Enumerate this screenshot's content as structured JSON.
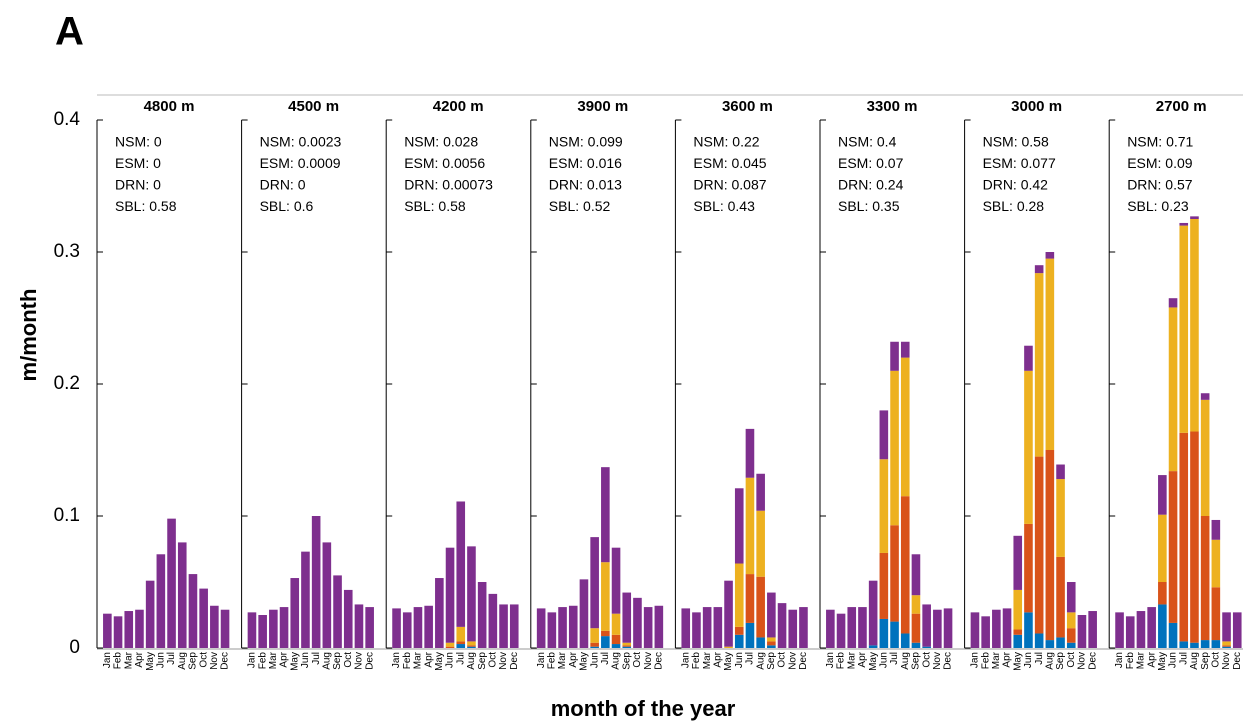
{
  "figure": {
    "panel_label": "A",
    "ylabel": "m/month",
    "xlabel": "month of the year"
  },
  "chart_data": [
    {
      "type": "bar",
      "stacked": true,
      "title": "4800 m",
      "annotations": [
        "NSM: 0",
        "ESM: 0",
        "DRN: 0",
        "SBL: 0.58"
      ],
      "categories": [
        "Jan",
        "Feb",
        "Mar",
        "Apr",
        "May",
        "Jun",
        "Jul",
        "Aug",
        "Sep",
        "Oct",
        "Nov",
        "Dec"
      ],
      "ylim": [
        0,
        0.4
      ],
      "yticks": [
        0,
        0.1,
        0.2,
        0.3,
        0.4
      ],
      "series": [
        {
          "color": "#0072bd",
          "values": [
            0,
            0,
            0,
            0,
            0,
            0,
            0,
            0,
            0,
            0,
            0,
            0
          ]
        },
        {
          "color": "#d95319",
          "values": [
            0,
            0,
            0,
            0,
            0,
            0,
            0,
            0,
            0,
            0,
            0,
            0
          ]
        },
        {
          "color": "#edb120",
          "values": [
            0,
            0,
            0,
            0,
            0,
            0,
            0,
            0,
            0,
            0,
            0,
            0
          ]
        },
        {
          "color": "#7e2f8e",
          "values": [
            0.026,
            0.024,
            0.028,
            0.029,
            0.051,
            0.071,
            0.098,
            0.08,
            0.056,
            0.045,
            0.032,
            0.029
          ]
        }
      ]
    },
    {
      "type": "bar",
      "stacked": true,
      "title": "4500 m",
      "annotations": [
        "NSM: 0.0023",
        "ESM: 0.0009",
        "DRN: 0",
        "SBL: 0.6"
      ],
      "categories": [
        "Jan",
        "Feb",
        "Mar",
        "Apr",
        "May",
        "Jun",
        "Jul",
        "Aug",
        "Sep",
        "Oct",
        "Nov",
        "Dec"
      ],
      "ylim": [
        0,
        0.4
      ],
      "yticks": [
        0,
        0.1,
        0.2,
        0.3,
        0.4
      ],
      "series": [
        {
          "color": "#0072bd",
          "values": [
            0,
            0,
            0,
            0,
            0,
            0,
            0,
            0,
            0,
            0,
            0,
            0
          ]
        },
        {
          "color": "#d95319",
          "values": [
            0,
            0,
            0,
            0,
            0,
            0,
            0,
            0,
            0,
            0,
            0,
            0
          ]
        },
        {
          "color": "#edb120",
          "values": [
            0,
            0,
            0,
            0,
            0,
            0,
            0,
            0,
            0,
            0,
            0,
            0
          ]
        },
        {
          "color": "#7e2f8e",
          "values": [
            0.027,
            0.025,
            0.029,
            0.031,
            0.053,
            0.073,
            0.1,
            0.08,
            0.055,
            0.044,
            0.033,
            0.031
          ]
        }
      ]
    },
    {
      "type": "bar",
      "stacked": true,
      "title": "4200 m",
      "annotations": [
        "NSM: 0.028",
        "ESM: 0.0056",
        "DRN: 0.00073",
        "SBL: 0.58"
      ],
      "categories": [
        "Jan",
        "Feb",
        "Mar",
        "Apr",
        "May",
        "Jun",
        "Jul",
        "Aug",
        "Sep",
        "Oct",
        "Nov",
        "Dec"
      ],
      "ylim": [
        0,
        0.4
      ],
      "yticks": [
        0,
        0.1,
        0.2,
        0.3,
        0.4
      ],
      "series": [
        {
          "color": "#0072bd",
          "values": [
            0,
            0,
            0,
            0,
            0,
            0,
            0.003,
            0.001,
            0,
            0,
            0,
            0
          ]
        },
        {
          "color": "#d95319",
          "values": [
            0,
            0,
            0,
            0,
            0,
            0.001,
            0.002,
            0.001,
            0,
            0,
            0,
            0
          ]
        },
        {
          "color": "#edb120",
          "values": [
            0,
            0,
            0,
            0,
            0,
            0.003,
            0.011,
            0.003,
            0,
            0,
            0,
            0
          ]
        },
        {
          "color": "#7e2f8e",
          "values": [
            0.03,
            0.027,
            0.031,
            0.032,
            0.053,
            0.072,
            0.095,
            0.072,
            0.05,
            0.041,
            0.033,
            0.033
          ]
        }
      ]
    },
    {
      "type": "bar",
      "stacked": true,
      "title": "3900 m",
      "annotations": [
        "NSM: 0.099",
        "ESM: 0.016",
        "DRN: 0.013",
        "SBL: 0.52"
      ],
      "categories": [
        "Jan",
        "Feb",
        "Mar",
        "Apr",
        "May",
        "Jun",
        "Jul",
        "Aug",
        "Sep",
        "Oct",
        "Nov",
        "Dec"
      ],
      "ylim": [
        0,
        0.4
      ],
      "yticks": [
        0,
        0.1,
        0.2,
        0.3,
        0.4
      ],
      "series": [
        {
          "color": "#0072bd",
          "values": [
            0,
            0,
            0,
            0,
            0,
            0.001,
            0.009,
            0.003,
            0.001,
            0,
            0,
            0
          ]
        },
        {
          "color": "#d95319",
          "values": [
            0,
            0,
            0,
            0,
            0,
            0.003,
            0.004,
            0.007,
            0.001,
            0,
            0,
            0
          ]
        },
        {
          "color": "#edb120",
          "values": [
            0,
            0,
            0,
            0,
            0,
            0.011,
            0.052,
            0.016,
            0.002,
            0,
            0,
            0
          ]
        },
        {
          "color": "#7e2f8e",
          "values": [
            0.03,
            0.027,
            0.031,
            0.032,
            0.052,
            0.069,
            0.072,
            0.05,
            0.038,
            0.038,
            0.031,
            0.032
          ]
        }
      ]
    },
    {
      "type": "bar",
      "stacked": true,
      "title": "3600 m",
      "annotations": [
        "NSM: 0.22",
        "ESM: 0.045",
        "DRN: 0.087",
        "SBL: 0.43"
      ],
      "categories": [
        "Jan",
        "Feb",
        "Mar",
        "Apr",
        "May",
        "Jun",
        "Jul",
        "Aug",
        "Sep",
        "Oct",
        "Nov",
        "Dec"
      ],
      "ylim": [
        0,
        0.4
      ],
      "yticks": [
        0,
        0.1,
        0.2,
        0.3,
        0.4
      ],
      "series": [
        {
          "color": "#0072bd",
          "values": [
            0,
            0,
            0,
            0,
            0,
            0.01,
            0.019,
            0.008,
            0.002,
            0,
            0,
            0
          ]
        },
        {
          "color": "#d95319",
          "values": [
            0,
            0,
            0,
            0,
            0,
            0.006,
            0.037,
            0.046,
            0.003,
            0,
            0,
            0
          ]
        },
        {
          "color": "#edb120",
          "values": [
            0,
            0,
            0,
            0,
            0.001,
            0.048,
            0.073,
            0.05,
            0.003,
            0,
            0,
            0
          ]
        },
        {
          "color": "#7e2f8e",
          "values": [
            0.03,
            0.027,
            0.031,
            0.031,
            0.05,
            0.057,
            0.037,
            0.028,
            0.034,
            0.034,
            0.029,
            0.031
          ]
        }
      ]
    },
    {
      "type": "bar",
      "stacked": true,
      "title": "3300 m",
      "annotations": [
        "NSM: 0.4",
        "ESM: 0.07",
        "DRN: 0.24",
        "SBL: 0.35"
      ],
      "categories": [
        "Jan",
        "Feb",
        "Mar",
        "Apr",
        "May",
        "Jun",
        "Jul",
        "Aug",
        "Sep",
        "Oct",
        "Nov",
        "Dec"
      ],
      "ylim": [
        0,
        0.4
      ],
      "yticks": [
        0,
        0.1,
        0.2,
        0.3,
        0.4
      ],
      "series": [
        {
          "color": "#0072bd",
          "values": [
            0,
            0,
            0,
            0,
            0.002,
            0.022,
            0.02,
            0.011,
            0.004,
            0.001,
            0,
            0
          ]
        },
        {
          "color": "#d95319",
          "values": [
            0,
            0,
            0,
            0,
            0,
            0.05,
            0.073,
            0.104,
            0.022,
            0,
            0,
            0
          ]
        },
        {
          "color": "#edb120",
          "values": [
            0,
            0,
            0,
            0,
            0,
            0.071,
            0.117,
            0.105,
            0.014,
            0,
            0,
            0
          ]
        },
        {
          "color": "#7e2f8e",
          "values": [
            0.029,
            0.026,
            0.031,
            0.031,
            0.049,
            0.037,
            0.022,
            0.012,
            0.031,
            0.032,
            0.029,
            0.03
          ]
        }
      ]
    },
    {
      "type": "bar",
      "stacked": true,
      "title": "3000 m",
      "annotations": [
        "NSM: 0.58",
        "ESM: 0.077",
        "DRN: 0.42",
        "SBL: 0.28"
      ],
      "categories": [
        "Jan",
        "Feb",
        "Mar",
        "Apr",
        "May",
        "Jun",
        "Jul",
        "Aug",
        "Sep",
        "Oct",
        "Nov",
        "Dec"
      ],
      "ylim": [
        0,
        0.4
      ],
      "yticks": [
        0,
        0.1,
        0.2,
        0.3,
        0.4
      ],
      "series": [
        {
          "color": "#0072bd",
          "values": [
            0,
            0,
            0,
            0,
            0.01,
            0.027,
            0.011,
            0.006,
            0.008,
            0.004,
            0,
            0
          ]
        },
        {
          "color": "#d95319",
          "values": [
            0,
            0,
            0,
            0,
            0.004,
            0.067,
            0.134,
            0.144,
            0.061,
            0.011,
            0,
            0
          ]
        },
        {
          "color": "#edb120",
          "values": [
            0,
            0,
            0,
            0,
            0.03,
            0.116,
            0.139,
            0.145,
            0.059,
            0.012,
            0,
            0
          ]
        },
        {
          "color": "#7e2f8e",
          "values": [
            0.027,
            0.024,
            0.029,
            0.03,
            0.041,
            0.019,
            0.006,
            0.005,
            0.011,
            0.023,
            0.025,
            0.028
          ]
        }
      ]
    },
    {
      "type": "bar",
      "stacked": true,
      "title": "2700 m",
      "annotations": [
        "NSM: 0.71",
        "ESM: 0.09",
        "DRN: 0.57",
        "SBL: 0.23"
      ],
      "categories": [
        "Jan",
        "Feb",
        "Mar",
        "Apr",
        "May",
        "Jun",
        "Jul",
        "Aug",
        "Sep",
        "Oct",
        "Nov",
        "Dec"
      ],
      "ylim": [
        0,
        0.4
      ],
      "yticks": [
        0,
        0.1,
        0.2,
        0.3,
        0.4
      ],
      "series": [
        {
          "color": "#0072bd",
          "values": [
            0,
            0,
            0,
            0,
            0.033,
            0.019,
            0.005,
            0.004,
            0.006,
            0.006,
            0.001,
            0
          ]
        },
        {
          "color": "#d95319",
          "values": [
            0,
            0,
            0,
            0,
            0.017,
            0.115,
            0.158,
            0.16,
            0.094,
            0.04,
            0.001,
            0
          ]
        },
        {
          "color": "#edb120",
          "values": [
            0,
            0,
            0,
            0,
            0.051,
            0.124,
            0.157,
            0.161,
            0.088,
            0.036,
            0.003,
            0
          ]
        },
        {
          "color": "#7e2f8e",
          "values": [
            0.027,
            0.024,
            0.028,
            0.031,
            0.03,
            0.007,
            0.002,
            0.002,
            0.005,
            0.015,
            0.022,
            0.027
          ]
        }
      ]
    }
  ]
}
